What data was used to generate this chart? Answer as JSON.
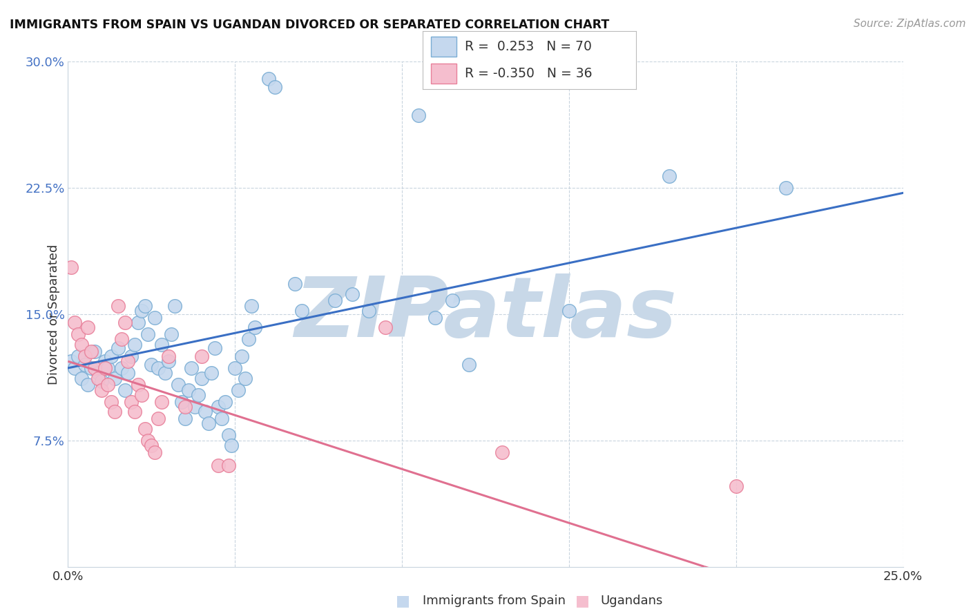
{
  "title": "IMMIGRANTS FROM SPAIN VS UGANDAN DIVORCED OR SEPARATED CORRELATION CHART",
  "source": "Source: ZipAtlas.com",
  "ylabel": "Divorced or Separated",
  "legend_blue": {
    "R": "0.253",
    "N": "70"
  },
  "legend_pink": {
    "R": "-0.350",
    "N": "36"
  },
  "legend_blue_label": "Immigrants from Spain",
  "legend_pink_label": "Ugandans",
  "blue_scatter_color": "#c5d8ee",
  "blue_edge_color": "#7aadd4",
  "pink_scatter_color": "#f5bece",
  "pink_edge_color": "#e8809a",
  "blue_line_color": "#3a6fc4",
  "pink_line_color": "#e07090",
  "blue_axis_color": "#4472c4",
  "grid_color": "#c8d4de",
  "text_color": "#333333",
  "source_color": "#999999",
  "watermark_color": "#c8d8e8",
  "blue_points": [
    [
      0.001,
      0.122
    ],
    [
      0.002,
      0.118
    ],
    [
      0.003,
      0.125
    ],
    [
      0.004,
      0.112
    ],
    [
      0.005,
      0.12
    ],
    [
      0.006,
      0.108
    ],
    [
      0.007,
      0.118
    ],
    [
      0.008,
      0.128
    ],
    [
      0.009,
      0.115
    ],
    [
      0.01,
      0.11
    ],
    [
      0.011,
      0.122
    ],
    [
      0.012,
      0.118
    ],
    [
      0.013,
      0.125
    ],
    [
      0.014,
      0.112
    ],
    [
      0.015,
      0.13
    ],
    [
      0.016,
      0.118
    ],
    [
      0.017,
      0.105
    ],
    [
      0.018,
      0.115
    ],
    [
      0.019,
      0.125
    ],
    [
      0.02,
      0.132
    ],
    [
      0.021,
      0.145
    ],
    [
      0.022,
      0.152
    ],
    [
      0.023,
      0.155
    ],
    [
      0.024,
      0.138
    ],
    [
      0.025,
      0.12
    ],
    [
      0.026,
      0.148
    ],
    [
      0.027,
      0.118
    ],
    [
      0.028,
      0.132
    ],
    [
      0.029,
      0.115
    ],
    [
      0.03,
      0.122
    ],
    [
      0.031,
      0.138
    ],
    [
      0.032,
      0.155
    ],
    [
      0.033,
      0.108
    ],
    [
      0.034,
      0.098
    ],
    [
      0.035,
      0.088
    ],
    [
      0.036,
      0.105
    ],
    [
      0.037,
      0.118
    ],
    [
      0.038,
      0.095
    ],
    [
      0.039,
      0.102
    ],
    [
      0.04,
      0.112
    ],
    [
      0.041,
      0.092
    ],
    [
      0.042,
      0.085
    ],
    [
      0.043,
      0.115
    ],
    [
      0.044,
      0.13
    ],
    [
      0.045,
      0.095
    ],
    [
      0.046,
      0.088
    ],
    [
      0.047,
      0.098
    ],
    [
      0.048,
      0.078
    ],
    [
      0.049,
      0.072
    ],
    [
      0.05,
      0.118
    ],
    [
      0.051,
      0.105
    ],
    [
      0.052,
      0.125
    ],
    [
      0.053,
      0.112
    ],
    [
      0.054,
      0.135
    ],
    [
      0.055,
      0.155
    ],
    [
      0.056,
      0.142
    ],
    [
      0.06,
      0.29
    ],
    [
      0.062,
      0.285
    ],
    [
      0.068,
      0.168
    ],
    [
      0.07,
      0.152
    ],
    [
      0.08,
      0.158
    ],
    [
      0.085,
      0.162
    ],
    [
      0.09,
      0.152
    ],
    [
      0.105,
      0.268
    ],
    [
      0.11,
      0.148
    ],
    [
      0.115,
      0.158
    ],
    [
      0.12,
      0.12
    ],
    [
      0.15,
      0.152
    ],
    [
      0.18,
      0.232
    ],
    [
      0.215,
      0.225
    ]
  ],
  "pink_points": [
    [
      0.001,
      0.178
    ],
    [
      0.002,
      0.145
    ],
    [
      0.003,
      0.138
    ],
    [
      0.004,
      0.132
    ],
    [
      0.005,
      0.125
    ],
    [
      0.006,
      0.142
    ],
    [
      0.007,
      0.128
    ],
    [
      0.008,
      0.118
    ],
    [
      0.009,
      0.112
    ],
    [
      0.01,
      0.105
    ],
    [
      0.011,
      0.118
    ],
    [
      0.012,
      0.108
    ],
    [
      0.013,
      0.098
    ],
    [
      0.014,
      0.092
    ],
    [
      0.015,
      0.155
    ],
    [
      0.016,
      0.135
    ],
    [
      0.017,
      0.145
    ],
    [
      0.018,
      0.122
    ],
    [
      0.019,
      0.098
    ],
    [
      0.02,
      0.092
    ],
    [
      0.021,
      0.108
    ],
    [
      0.022,
      0.102
    ],
    [
      0.023,
      0.082
    ],
    [
      0.024,
      0.075
    ],
    [
      0.025,
      0.072
    ],
    [
      0.026,
      0.068
    ],
    [
      0.027,
      0.088
    ],
    [
      0.028,
      0.098
    ],
    [
      0.03,
      0.125
    ],
    [
      0.035,
      0.095
    ],
    [
      0.04,
      0.125
    ],
    [
      0.045,
      0.06
    ],
    [
      0.048,
      0.06
    ],
    [
      0.095,
      0.142
    ],
    [
      0.13,
      0.068
    ],
    [
      0.2,
      0.048
    ]
  ],
  "xlim": [
    0.0,
    0.25
  ],
  "ylim": [
    0.0,
    0.3
  ],
  "ytick_vals": [
    0.075,
    0.15,
    0.225,
    0.3
  ],
  "ytick_labels": [
    "7.5%",
    "15.0%",
    "22.5%",
    "30.0%"
  ],
  "xtick_vals": [
    0.0,
    0.05,
    0.1,
    0.15,
    0.2,
    0.25
  ],
  "xtick_labels": [
    "0.0%",
    "",
    "",
    "",
    "",
    "25.0%"
  ],
  "blue_regression": [
    0.0,
    0.25,
    0.118,
    0.222
  ],
  "pink_regression": [
    0.0,
    0.25,
    0.122,
    -0.038
  ]
}
